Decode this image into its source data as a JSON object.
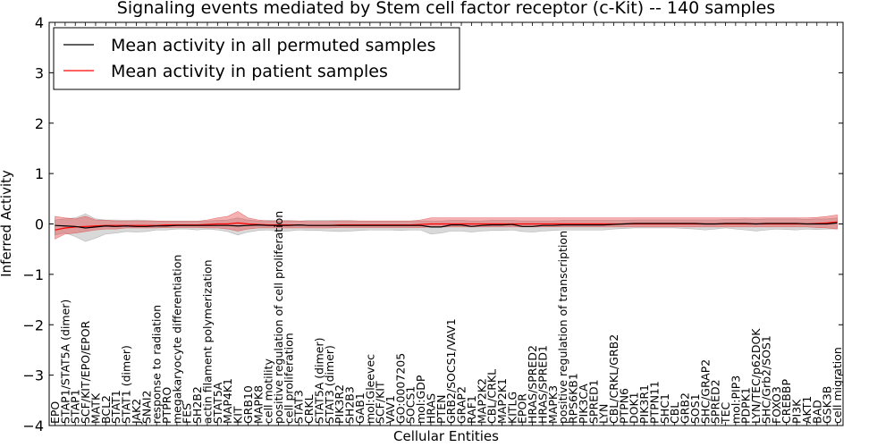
{
  "chart_data": {
    "type": "line",
    "title": "Signaling events mediated by Stem cell factor receptor (c-Kit) -- 140 samples",
    "xlabel": "Cellular Entities",
    "ylabel": "Inferred Activity",
    "ylim": [
      -4,
      4
    ],
    "yticks": [
      -4,
      -3,
      -2,
      -1,
      0,
      1,
      2,
      3,
      4
    ],
    "ytick_labels": [
      "−4",
      "−3",
      "−2",
      "−1",
      "0",
      "1",
      "2",
      "3",
      "4"
    ],
    "legend_position": "top-left",
    "categories": [
      "EPO",
      "STAP1/STAT5A (dimer)",
      "STAP1",
      "SCF/KIT/EPO/EPOR",
      "MATK",
      "BCL2",
      "STAT1",
      "STAT1 (dimer)",
      "JAK2",
      "SNAI2",
      "response to radiation",
      "PTPRO",
      "megakaryocyte differentiation",
      "FES",
      "SH2B2",
      "actin filament polymerization",
      "STAT5A",
      "MAP4K1",
      "KIT",
      "GRB10",
      "MAPK8",
      "cell motility",
      "positive regulation of cell proliferation",
      "cell proliferation",
      "STAT3",
      "CRKL",
      "STAT5A (dimer)",
      "STAT3 (dimer)",
      "PIK3R2",
      "SH2B3",
      "GAB1",
      "mol:Gleevec",
      "SCF/KIT",
      "VAV1",
      "GO:0007205",
      "SOCS1",
      "mol:GDP",
      "HRAS",
      "PTEN",
      "GRB2/SOCS1/VAV1",
      "GRAP2",
      "RAF1",
      "MAP2K2",
      "CBL/CRKL",
      "MAP2K1",
      "KITLG",
      "EPOR",
      "HRAS/SPRED2",
      "HRAS/SPRED1",
      "MAPK3",
      "positive regulation of transcription",
      "RPS6KB1",
      "PIK3CA",
      "SPRED1",
      "LYN",
      "CBL/CRKL/GRB2",
      "PTPN6",
      "DOK1",
      "PIK3R1",
      "PTPN11",
      "SHC1",
      "CBL",
      "GRB2",
      "SOS1",
      "SHC/GRAP2",
      "SPRED2",
      "TEC",
      "mol:PIP3",
      "PDPK1",
      "LYN/TEC/p62DOK",
      "SHC/Grb2/SOS1",
      "FOXO3",
      "CREBBP",
      "PI3K",
      "AKT1",
      "BAD",
      "GSK3B",
      "cell migration"
    ],
    "series": [
      {
        "name": "Mean activity in all permuted samples",
        "color": "#000000",
        "values": [
          -0.03,
          -0.04,
          -0.05,
          -0.08,
          -0.06,
          -0.04,
          -0.05,
          -0.04,
          -0.05,
          -0.05,
          -0.04,
          -0.04,
          -0.03,
          -0.03,
          -0.03,
          -0.03,
          -0.03,
          -0.03,
          -0.04,
          -0.03,
          -0.02,
          -0.03,
          -0.03,
          -0.03,
          -0.02,
          -0.03,
          -0.03,
          -0.03,
          -0.03,
          -0.03,
          -0.03,
          -0.03,
          -0.03,
          -0.03,
          -0.03,
          -0.03,
          -0.03,
          -0.06,
          -0.06,
          -0.02,
          -0.02,
          -0.05,
          -0.03,
          -0.02,
          -0.02,
          -0.01,
          -0.05,
          -0.05,
          -0.03,
          -0.03,
          -0.02,
          -0.02,
          -0.02,
          -0.02,
          -0.02,
          -0.01,
          0.0,
          0.01,
          0.01,
          0.01,
          0.01,
          0.01,
          0.01,
          0.01,
          0.0,
          0.0,
          0.01,
          0.01,
          0.01,
          0.0,
          0.01,
          0.01,
          0.01,
          0.01,
          0.0,
          0.0,
          0.0,
          0.02
        ],
        "band": {
          "lower": [
            -0.22,
            -0.18,
            -0.25,
            -0.35,
            -0.28,
            -0.2,
            -0.18,
            -0.15,
            -0.16,
            -0.15,
            -0.12,
            -0.12,
            -0.1,
            -0.1,
            -0.12,
            -0.1,
            -0.12,
            -0.15,
            -0.22,
            -0.16,
            -0.13,
            -0.12,
            -0.15,
            -0.14,
            -0.12,
            -0.13,
            -0.13,
            -0.14,
            -0.15,
            -0.14,
            -0.13,
            -0.12,
            -0.12,
            -0.12,
            -0.13,
            -0.12,
            -0.12,
            -0.2,
            -0.18,
            -0.14,
            -0.14,
            -0.16,
            -0.14,
            -0.13,
            -0.13,
            -0.12,
            -0.15,
            -0.16,
            -0.14,
            -0.13,
            -0.12,
            -0.12,
            -0.12,
            -0.12,
            -0.12,
            -0.1,
            -0.09,
            -0.08,
            -0.08,
            -0.08,
            -0.08,
            -0.08,
            -0.09,
            -0.1,
            -0.12,
            -0.1,
            -0.08,
            -0.1,
            -0.12,
            -0.14,
            -0.12,
            -0.1,
            -0.11,
            -0.12,
            -0.1,
            -0.11,
            -0.1,
            -0.1
          ],
          "upper": [
            0.08,
            0.1,
            0.12,
            0.2,
            0.1,
            0.08,
            0.08,
            0.07,
            0.08,
            0.07,
            0.06,
            0.06,
            0.06,
            0.06,
            0.06,
            0.06,
            0.07,
            0.08,
            0.12,
            0.08,
            0.06,
            0.07,
            0.07,
            0.07,
            0.06,
            0.07,
            0.07,
            0.07,
            0.07,
            0.07,
            0.06,
            0.06,
            0.06,
            0.06,
            0.06,
            0.06,
            0.06,
            0.06,
            0.06,
            0.07,
            0.07,
            0.06,
            0.06,
            0.07,
            0.07,
            0.07,
            0.06,
            0.06,
            0.06,
            0.06,
            0.07,
            0.07,
            0.07,
            0.07,
            0.07,
            0.07,
            0.07,
            0.08,
            0.08,
            0.08,
            0.08,
            0.08,
            0.08,
            0.08,
            0.08,
            0.08,
            0.09,
            0.09,
            0.1,
            0.09,
            0.1,
            0.1,
            0.1,
            0.1,
            0.09,
            0.1,
            0.1,
            0.12
          ]
        }
      },
      {
        "name": "Mean activity in patient samples",
        "color": "#ff0000",
        "values": [
          -0.12,
          -0.08,
          -0.06,
          -0.05,
          -0.04,
          -0.03,
          -0.03,
          -0.03,
          -0.03,
          -0.03,
          -0.03,
          -0.02,
          -0.02,
          -0.02,
          -0.02,
          -0.01,
          0.0,
          0.0,
          0.02,
          0.0,
          -0.01,
          -0.02,
          -0.02,
          -0.02,
          -0.02,
          -0.03,
          -0.03,
          -0.03,
          -0.02,
          -0.02,
          -0.02,
          -0.02,
          -0.02,
          -0.02,
          -0.02,
          -0.02,
          -0.01,
          0.0,
          0.0,
          0.0,
          0.0,
          0.0,
          0.0,
          0.0,
          0.0,
          0.0,
          0.0,
          0.0,
          0.0,
          0.0,
          0.0,
          0.0,
          0.0,
          0.0,
          0.0,
          0.0,
          0.0,
          0.0,
          0.0,
          0.0,
          0.0,
          0.0,
          0.0,
          0.0,
          0.0,
          0.0,
          0.0,
          0.0,
          0.0,
          0.0,
          0.0,
          0.0,
          0.0,
          0.0,
          0.0,
          0.01,
          0.02,
          0.04
        ],
        "band": {
          "lower": [
            -0.3,
            -0.2,
            -0.18,
            -0.15,
            -0.12,
            -0.1,
            -0.1,
            -0.08,
            -0.08,
            -0.08,
            -0.08,
            -0.07,
            -0.07,
            -0.07,
            -0.07,
            -0.08,
            -0.08,
            -0.1,
            -0.14,
            -0.1,
            -0.08,
            -0.08,
            -0.08,
            -0.08,
            -0.08,
            -0.08,
            -0.08,
            -0.08,
            -0.07,
            -0.07,
            -0.07,
            -0.07,
            -0.07,
            -0.07,
            -0.07,
            -0.07,
            -0.07,
            -0.06,
            -0.06,
            -0.06,
            -0.06,
            -0.06,
            -0.06,
            -0.06,
            -0.06,
            -0.06,
            -0.06,
            -0.06,
            -0.06,
            -0.06,
            -0.06,
            -0.06,
            -0.06,
            -0.06,
            -0.06,
            -0.06,
            -0.06,
            -0.06,
            -0.06,
            -0.06,
            -0.06,
            -0.06,
            -0.06,
            -0.06,
            -0.06,
            -0.06,
            -0.06,
            -0.06,
            -0.06,
            -0.06,
            -0.06,
            -0.06,
            -0.06,
            -0.06,
            -0.06,
            -0.07,
            -0.08,
            -0.1
          ],
          "upper": [
            0.15,
            0.12,
            0.1,
            0.15,
            0.08,
            0.07,
            0.06,
            0.06,
            0.06,
            0.06,
            0.06,
            0.05,
            0.05,
            0.05,
            0.05,
            0.08,
            0.12,
            0.15,
            0.25,
            0.12,
            0.08,
            0.06,
            0.06,
            0.06,
            0.06,
            0.05,
            0.05,
            0.05,
            0.06,
            0.06,
            0.06,
            0.06,
            0.06,
            0.06,
            0.06,
            0.06,
            0.08,
            0.12,
            0.12,
            0.12,
            0.12,
            0.12,
            0.12,
            0.12,
            0.12,
            0.12,
            0.12,
            0.12,
            0.12,
            0.12,
            0.12,
            0.12,
            0.12,
            0.12,
            0.12,
            0.12,
            0.12,
            0.12,
            0.12,
            0.12,
            0.12,
            0.12,
            0.12,
            0.12,
            0.12,
            0.12,
            0.12,
            0.12,
            0.12,
            0.12,
            0.12,
            0.12,
            0.12,
            0.12,
            0.12,
            0.13,
            0.15,
            0.18
          ]
        }
      }
    ]
  }
}
